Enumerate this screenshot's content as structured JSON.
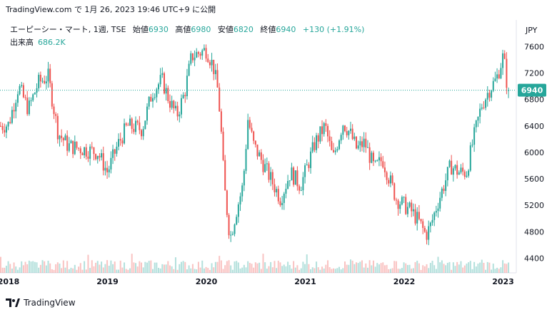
{
  "header": {
    "caption": "TradingView.com で 1月 26, 2023 19:46 UTC+9 に公開"
  },
  "legend": {
    "symbol": "エーピーシー・マート, 1週, TSE",
    "open_label": "始値",
    "open_value": "6930",
    "high_label": "高値",
    "high_value": "6980",
    "low_label": "安値",
    "low_value": "6820",
    "close_label": "終値",
    "close_value": "6940",
    "change": "+130 (+1.91%)"
  },
  "volume": {
    "label": "出来高",
    "value": "686.2K"
  },
  "footer": {
    "brand": "TradingView"
  },
  "colors": {
    "up": "#26a69a",
    "down": "#ef5350",
    "text": "#131722",
    "price_line": "#26a69a"
  },
  "chart_data": {
    "type": "candlestick",
    "currency": "JPY",
    "interval": "1週",
    "y_ticks": [
      4400,
      4800,
      5200,
      5600,
      6000,
      6400,
      6800,
      7200,
      7600
    ],
    "y_range": [
      4180,
      7980
    ],
    "x_ticks": [
      "2018",
      "2019",
      "2020",
      "2021",
      "2022",
      "2023"
    ],
    "last_price": 6940,
    "price_path": [
      {
        "t": 2017.92,
        "p": 6400
      },
      {
        "t": 2018.0,
        "p": 6420
      },
      {
        "t": 2018.1,
        "p": 7000
      },
      {
        "t": 2018.2,
        "p": 6650
      },
      {
        "t": 2018.3,
        "p": 7050
      },
      {
        "t": 2018.4,
        "p": 7150
      },
      {
        "t": 2018.5,
        "p": 6300
      },
      {
        "t": 2018.6,
        "p": 6100
      },
      {
        "t": 2018.75,
        "p": 6050
      },
      {
        "t": 2018.9,
        "p": 6000
      },
      {
        "t": 2019.0,
        "p": 5700
      },
      {
        "t": 2019.1,
        "p": 6100
      },
      {
        "t": 2019.2,
        "p": 6400
      },
      {
        "t": 2019.35,
        "p": 6350
      },
      {
        "t": 2019.45,
        "p": 6900
      },
      {
        "t": 2019.55,
        "p": 7100
      },
      {
        "t": 2019.62,
        "p": 6800
      },
      {
        "t": 2019.7,
        "p": 6550
      },
      {
        "t": 2019.78,
        "p": 6900
      },
      {
        "t": 2019.85,
        "p": 7450
      },
      {
        "t": 2019.92,
        "p": 7500
      },
      {
        "t": 2020.0,
        "p": 7550
      },
      {
        "t": 2020.07,
        "p": 7300
      },
      {
        "t": 2020.12,
        "p": 6900
      },
      {
        "t": 2020.15,
        "p": 6300
      },
      {
        "t": 2020.18,
        "p": 5500
      },
      {
        "t": 2020.24,
        "p": 4700
      },
      {
        "t": 2020.3,
        "p": 5100
      },
      {
        "t": 2020.37,
        "p": 5500
      },
      {
        "t": 2020.42,
        "p": 6500
      },
      {
        "t": 2020.48,
        "p": 6100
      },
      {
        "t": 2020.55,
        "p": 5900
      },
      {
        "t": 2020.65,
        "p": 5600
      },
      {
        "t": 2020.75,
        "p": 5300
      },
      {
        "t": 2020.85,
        "p": 5700
      },
      {
        "t": 2020.95,
        "p": 5500
      },
      {
        "t": 2021.0,
        "p": 5700
      },
      {
        "t": 2021.1,
        "p": 6150
      },
      {
        "t": 2021.2,
        "p": 6400
      },
      {
        "t": 2021.28,
        "p": 5900
      },
      {
        "t": 2021.38,
        "p": 6450
      },
      {
        "t": 2021.45,
        "p": 6300
      },
      {
        "t": 2021.52,
        "p": 6050
      },
      {
        "t": 2021.6,
        "p": 6150
      },
      {
        "t": 2021.7,
        "p": 5750
      },
      {
        "t": 2021.78,
        "p": 5900
      },
      {
        "t": 2021.85,
        "p": 5600
      },
      {
        "t": 2021.92,
        "p": 5300
      },
      {
        "t": 2022.0,
        "p": 5200
      },
      {
        "t": 2022.08,
        "p": 5100
      },
      {
        "t": 2022.15,
        "p": 4950
      },
      {
        "t": 2022.22,
        "p": 4750
      },
      {
        "t": 2022.27,
        "p": 4900
      },
      {
        "t": 2022.33,
        "p": 5200
      },
      {
        "t": 2022.4,
        "p": 5500
      },
      {
        "t": 2022.47,
        "p": 5800
      },
      {
        "t": 2022.55,
        "p": 5700
      },
      {
        "t": 2022.63,
        "p": 5700
      },
      {
        "t": 2022.7,
        "p": 6200
      },
      {
        "t": 2022.78,
        "p": 6700
      },
      {
        "t": 2022.86,
        "p": 6950
      },
      {
        "t": 2022.93,
        "p": 7100
      },
      {
        "t": 2023.0,
        "p": 7450
      },
      {
        "t": 2023.03,
        "p": 7200
      },
      {
        "t": 2023.05,
        "p": 6750
      },
      {
        "t": 2023.07,
        "p": 6940
      }
    ]
  }
}
